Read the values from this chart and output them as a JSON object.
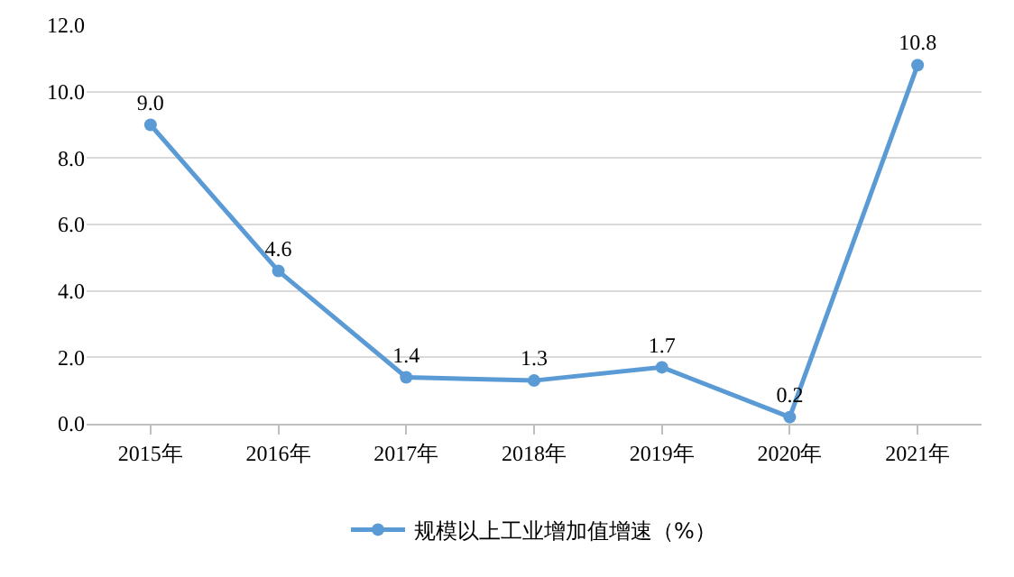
{
  "chart_data": {
    "type": "line",
    "categories": [
      "2015年",
      "2016年",
      "2017年",
      "2018年",
      "2019年",
      "2020年",
      "2021年"
    ],
    "series": [
      {
        "name": "规模以上工业增加值增速（%）",
        "color": "#5b9bd5",
        "values": [
          9.0,
          4.6,
          1.4,
          1.3,
          1.7,
          0.2,
          10.8
        ],
        "value_labels": [
          "9.0",
          "4.6",
          "1.4",
          "1.3",
          "1.7",
          "0.2",
          "10.8"
        ]
      }
    ],
    "ylim": [
      0,
      12
    ],
    "yticks": [
      {
        "value": 0,
        "label": "0.0"
      },
      {
        "value": 2,
        "label": "2.0"
      },
      {
        "value": 4,
        "label": "4.0"
      },
      {
        "value": 6,
        "label": "6.0"
      },
      {
        "value": 8,
        "label": "8.0"
      },
      {
        "value": 10,
        "label": "10.0"
      },
      {
        "value": 12,
        "label": "12.0"
      }
    ],
    "grid": "y",
    "legend": "bottom",
    "marker": "circle",
    "line_style": "solid"
  }
}
